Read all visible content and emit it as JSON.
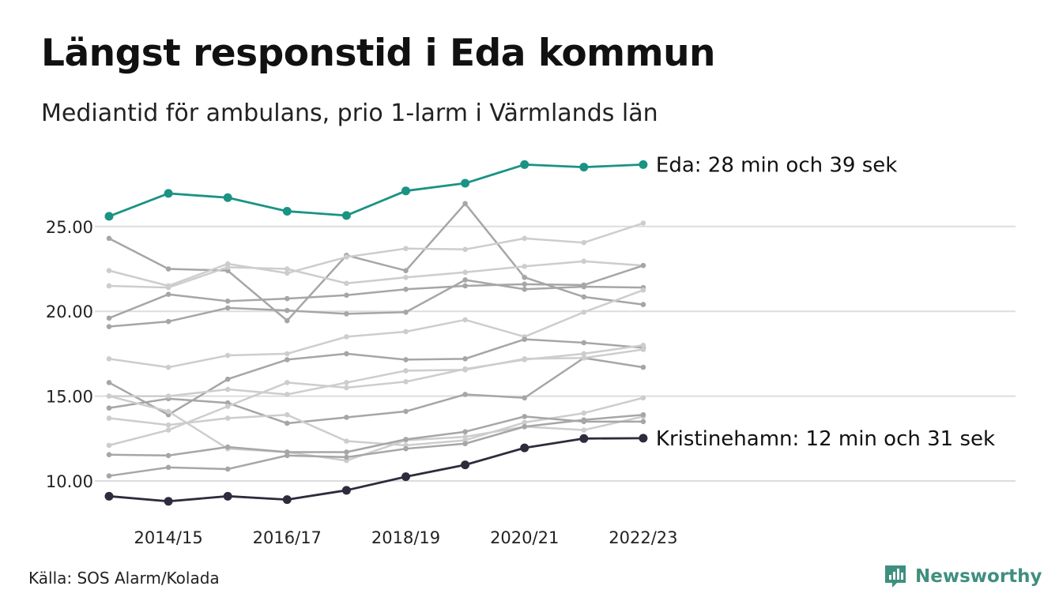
{
  "header": {
    "title": "Längst responstid i Eda kommun",
    "subtitle": "Mediantid för ambulans, prio 1-larm i Värmlands län"
  },
  "footer": {
    "source": "Källa: SOS Alarm/Kolada",
    "brand": "Newsworthy",
    "brand_icon": "newsworthy-logo-icon"
  },
  "colors": {
    "highlight_high": "#1a9384",
    "highlight_low": "#2d2c3c",
    "other_dark": "#a6a6a6",
    "other_light": "#cdcdcd",
    "grid": "#dddddd",
    "brand": "#3f8f7f"
  },
  "chart_data": {
    "type": "line",
    "x": [
      "2013/14",
      "2014/15",
      "2015/16",
      "2016/17",
      "2017/18",
      "2018/19",
      "2019/20",
      "2020/21",
      "2021/22",
      "2022/23"
    ],
    "x_tick_labels": [
      "2014/15",
      "2016/17",
      "2018/19",
      "2020/21",
      "2022/23"
    ],
    "y_ticks": [
      10,
      15,
      20,
      25
    ],
    "y_tick_labels": [
      "10.00",
      "15.00",
      "20.00",
      "25.00"
    ],
    "ylim": [
      8.0,
      29.0
    ],
    "grid": "horizontal",
    "highlighted": [
      {
        "name": "Eda",
        "label": "Eda: 28 min och 39 sek",
        "values": [
          25.6,
          26.95,
          26.7,
          25.9,
          25.65,
          27.1,
          27.55,
          28.65,
          28.5,
          28.65
        ]
      },
      {
        "name": "Kristinehamn",
        "label": "Kristinehamn: 12 min och 31 sek",
        "values": [
          9.1,
          8.8,
          9.1,
          8.9,
          9.45,
          10.25,
          10.95,
          11.95,
          12.5,
          12.52
        ]
      }
    ],
    "others": [
      {
        "tone": "dark",
        "values": [
          24.3,
          22.5,
          22.4,
          19.45,
          23.3,
          22.4,
          26.35,
          22.0,
          20.85,
          20.4
        ]
      },
      {
        "tone": "light",
        "values": [
          22.4,
          21.5,
          22.8,
          22.25,
          23.2,
          23.7,
          23.65,
          24.3,
          24.05,
          25.2
        ]
      },
      {
        "tone": "light",
        "values": [
          21.5,
          21.4,
          22.6,
          22.5,
          21.65,
          22.0,
          22.3,
          22.65,
          22.95,
          22.7
        ]
      },
      {
        "tone": "dark",
        "values": [
          19.6,
          21.0,
          20.6,
          20.75,
          20.95,
          21.3,
          21.5,
          21.6,
          21.55,
          22.7
        ]
      },
      {
        "tone": "dark",
        "values": [
          19.1,
          19.4,
          20.2,
          20.05,
          19.85,
          19.95,
          21.85,
          21.3,
          21.45,
          21.4
        ]
      },
      {
        "tone": "light",
        "values": [
          17.2,
          16.7,
          17.4,
          17.5,
          18.5,
          18.8,
          19.5,
          18.5,
          19.95,
          21.25
        ]
      },
      {
        "tone": "dark",
        "values": [
          14.3,
          14.85,
          14.6,
          13.4,
          13.75,
          14.1,
          15.1,
          14.9,
          17.25,
          16.7
        ]
      },
      {
        "tone": "dark",
        "values": [
          15.8,
          13.9,
          16.0,
          17.15,
          17.5,
          17.15,
          17.2,
          18.35,
          18.15,
          17.85
        ]
      },
      {
        "tone": "light",
        "values": [
          15.0,
          15.0,
          15.4,
          15.1,
          15.8,
          16.5,
          16.55,
          17.2,
          17.25,
          17.75
        ]
      },
      {
        "tone": "light",
        "values": [
          12.1,
          13.0,
          14.4,
          15.8,
          15.5,
          15.85,
          16.6,
          17.15,
          17.5,
          18.0
        ]
      },
      {
        "tone": "light",
        "values": [
          13.7,
          13.3,
          13.7,
          13.9,
          12.35,
          12.1,
          12.4,
          13.45,
          14.0,
          14.9
        ]
      },
      {
        "tone": "light",
        "values": [
          15.0,
          14.1,
          11.9,
          11.7,
          11.2,
          12.4,
          12.6,
          13.2,
          13.0,
          13.8
        ]
      },
      {
        "tone": "dark",
        "values": [
          11.55,
          11.5,
          12.0,
          11.7,
          11.7,
          12.45,
          12.9,
          13.8,
          13.5,
          13.5
        ]
      },
      {
        "tone": "dark",
        "values": [
          10.3,
          10.8,
          10.7,
          11.5,
          11.4,
          11.9,
          12.2,
          13.2,
          13.6,
          13.9
        ]
      }
    ]
  }
}
